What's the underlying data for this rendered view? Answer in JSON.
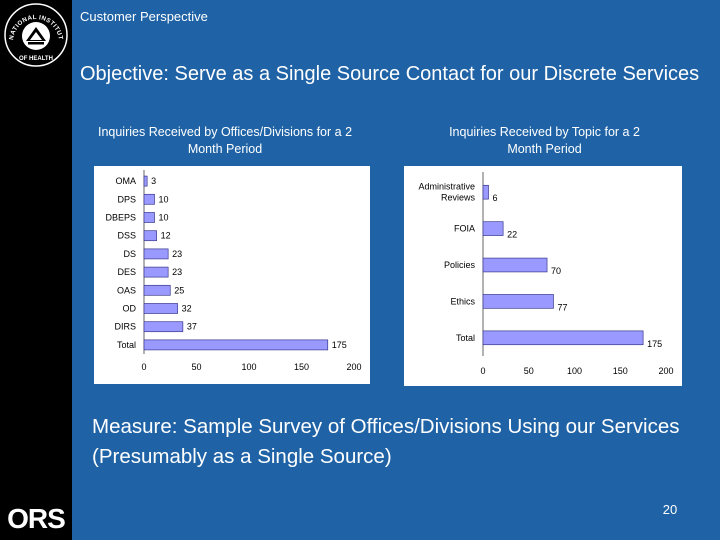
{
  "slide": {
    "header": "Customer Perspective",
    "objective": "Objective: Serve as a Single Source Contact for our Discrete Services",
    "measure": "Measure: Sample Survey of Offices/Divisions Using our Services (Presumably as a Single Source)",
    "page_number": "20",
    "logo_text": "ORS",
    "seal_text": "NATIONAL INSTITUTES OF HEALTH"
  },
  "colors": {
    "background": "#1f63a6",
    "sidebar": "#000000",
    "bar_fill": "#9999ff",
    "bar_stroke": "#3a3a8c"
  },
  "chart_data": [
    {
      "type": "bar",
      "orientation": "horizontal",
      "title": "Inquiries Received by Offices/Divisions for a 2 Month Period",
      "categories": [
        "OMA",
        "DPS",
        "DBEPS",
        "DSS",
        "DS",
        "DES",
        "OAS",
        "OD",
        "DIRS",
        "Total"
      ],
      "values": [
        3,
        10,
        10,
        12,
        23,
        23,
        25,
        32,
        37,
        175
      ],
      "xlim": [
        0,
        200
      ],
      "xticks": [
        0,
        50,
        100,
        150,
        200
      ],
      "grid": false,
      "data_labels": true
    },
    {
      "type": "bar",
      "orientation": "horizontal",
      "title": "Inquiries Received by Topic for a 2 Month Period",
      "categories": [
        "Administrative Reviews",
        "FOIA",
        "Policies",
        "Ethics",
        "Total"
      ],
      "values": [
        6,
        22,
        70,
        77,
        175
      ],
      "xlim": [
        0,
        200
      ],
      "xticks": [
        0,
        50,
        100,
        150,
        200
      ],
      "grid": false,
      "data_labels": true
    }
  ]
}
